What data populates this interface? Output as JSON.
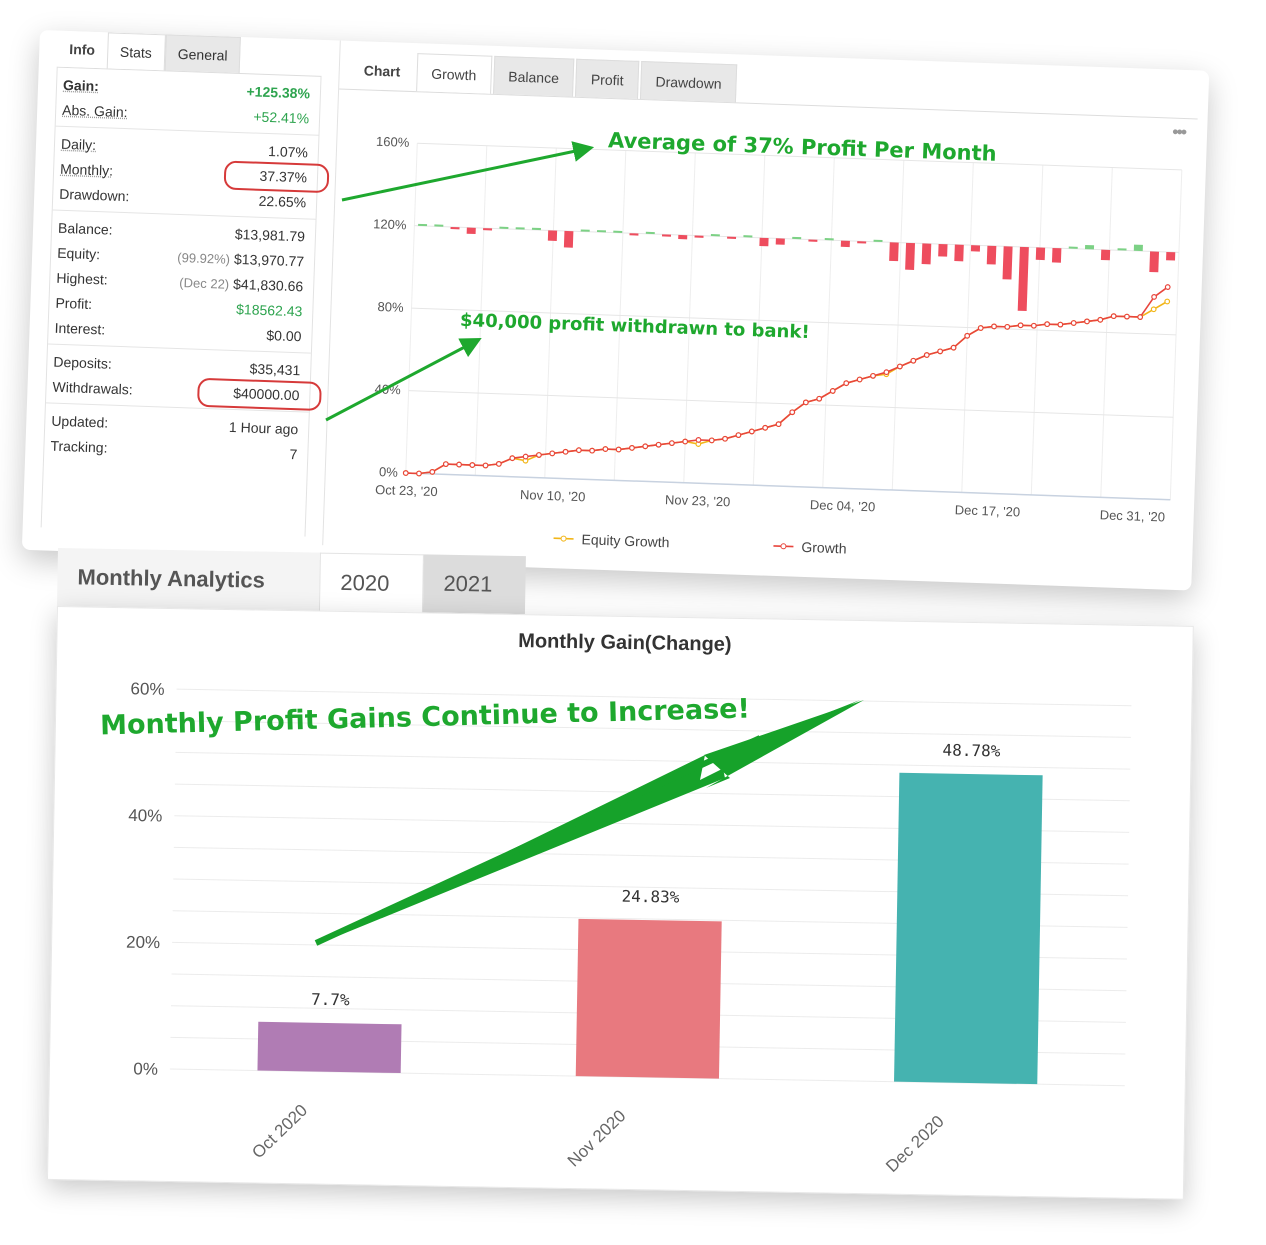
{
  "stats_panel": {
    "tabs": [
      "Info",
      "Stats",
      "General"
    ],
    "gain": {
      "label": "Gain:",
      "value": "+125.38%"
    },
    "abs_gain": {
      "label": "Abs. Gain:",
      "value": "+52.41%"
    },
    "daily": {
      "label": "Daily:",
      "value": "1.07%"
    },
    "monthly": {
      "label": "Monthly:",
      "value": "37.37%"
    },
    "drawdown": {
      "label": "Drawdown:",
      "value": "22.65%"
    },
    "balance": {
      "label": "Balance:",
      "value": "$13,981.79"
    },
    "equity": {
      "label": "Equity:",
      "note": "(99.92%)",
      "value": "$13,970.77"
    },
    "highest": {
      "label": "Highest:",
      "note": "(Dec 22)",
      "value": "$41,830.66"
    },
    "profit": {
      "label": "Profit:",
      "value": "$18562.43"
    },
    "interest": {
      "label": "Interest:",
      "value": "$0.00"
    },
    "deposits": {
      "label": "Deposits:",
      "value": "$35,431"
    },
    "withdrawals": {
      "label": "Withdrawals:",
      "value": "$40000.00"
    },
    "updated": {
      "label": "Updated:",
      "value": "1 Hour ago"
    },
    "tracking": {
      "label": "Tracking:",
      "value": "7"
    }
  },
  "chart_panel": {
    "tabs": [
      "Chart",
      "Growth",
      "Balance",
      "Profit",
      "Drawdown"
    ],
    "active_tab": "Growth",
    "more_icon": "more-dots-icon"
  },
  "annotations": {
    "avg_profit": "Average of 37% Profit Per Month",
    "withdrawn": "$40,000 profit withdrawn to bank!",
    "increase": "Monthly Profit Gains Continue to Increase!",
    "color": "#1ea82e"
  },
  "monthly_analytics": {
    "title": "Monthly Analytics",
    "tabs": [
      "2020",
      "2021"
    ]
  },
  "chart_data": [
    {
      "type": "line",
      "title": "",
      "ylim": [
        0,
        160
      ],
      "yticks": [
        "0%",
        "40%",
        "80%",
        "120%",
        "160%"
      ],
      "xtick_labels": [
        "Oct 23, '20",
        "Nov 10, '20",
        "Nov 23, '20",
        "Dec 04, '20",
        "Dec 17, '20",
        "Dec 31, '20"
      ],
      "legend": [
        "Equity Growth",
        "Growth"
      ],
      "series": [
        {
          "name": "Growth",
          "color": "#e8453c",
          "values": [
            0,
            0,
            1,
            5,
            5,
            5,
            5,
            6,
            9,
            10,
            11,
            12,
            13,
            14,
            14,
            15,
            15,
            16,
            17,
            18,
            19,
            20,
            21,
            21,
            22,
            24,
            26,
            28,
            30,
            36,
            41,
            43,
            47,
            51,
            53,
            55,
            57,
            60,
            63,
            66,
            68,
            70,
            76,
            80,
            81,
            81,
            82,
            82,
            83,
            83,
            84,
            85,
            86,
            88,
            88,
            88,
            98,
            103
          ]
        },
        {
          "name": "Equity Growth",
          "color": "#f2b619",
          "values": [
            0,
            0,
            1,
            5,
            5,
            5,
            5,
            6,
            9,
            8,
            11,
            12,
            13,
            14,
            14,
            15,
            15,
            16,
            17,
            18,
            19,
            20,
            19,
            21,
            22,
            24,
            26,
            28,
            30,
            36,
            41,
            43,
            47,
            51,
            53,
            55,
            56,
            60,
            63,
            66,
            68,
            70,
            76,
            80,
            81,
            81,
            82,
            82,
            83,
            83,
            84,
            85,
            86,
            88,
            88,
            88,
            92,
            96
          ]
        }
      ],
      "daily_bars": [
        0,
        0,
        -1,
        -3,
        -1,
        0,
        0,
        1,
        -5,
        -8,
        0,
        0,
        0,
        -1,
        0,
        -1,
        -2,
        -1,
        0,
        -1,
        0,
        -4,
        -3,
        1,
        -1,
        0,
        -3,
        -1,
        0,
        -9,
        -13,
        -10,
        -6,
        -8,
        -3,
        -9,
        -16,
        -31,
        -6,
        -7,
        0,
        2,
        -5,
        0,
        3,
        -10,
        -4
      ]
    },
    {
      "type": "bar",
      "title": "Monthly Gain(Change)",
      "categories": [
        "Oct 2020",
        "Nov 2020",
        "Dec 2020"
      ],
      "values": [
        7.7,
        24.83,
        48.78
      ],
      "value_labels": [
        "7.7%",
        "24.83%",
        "48.78%"
      ],
      "colors": [
        "#b07cb4",
        "#e8797f",
        "#45b3b0"
      ],
      "ylim": [
        0,
        60
      ],
      "yticks": [
        "0%",
        "20%",
        "40%",
        "60%"
      ]
    }
  ]
}
